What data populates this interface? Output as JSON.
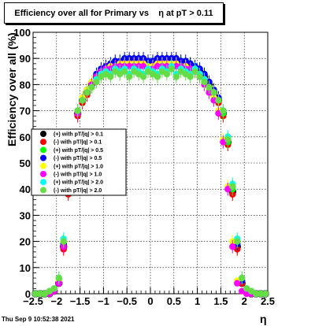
{
  "title": "Efficiency over all for Primary vs    η at pT > 0.11",
  "timestamp": "Thu Sep  9 10:52:38 2021",
  "chart_data": {
    "type": "scatter",
    "title": "Efficiency over all for Primary vs    η at pT > 0.11",
    "xlabel": "η",
    "ylabel": "Efficiency over all (%)",
    "xlim": [
      -2.5,
      2.5
    ],
    "ylim": [
      0,
      100
    ],
    "x_ticks": [
      -2.5,
      -2,
      -1.5,
      -1,
      -0.5,
      0,
      0.5,
      1,
      1.5,
      2,
      2.5
    ],
    "x_tick_labels": [
      "−2.5",
      "−2",
      "−1.5",
      "−1",
      "−0.5",
      "0",
      "0.5",
      "1",
      "1.5",
      "2",
      "2.5"
    ],
    "y_ticks": [
      0,
      10,
      20,
      30,
      40,
      50,
      60,
      70,
      80,
      90,
      100
    ],
    "grid": true,
    "legend_position": "middle-left",
    "x": [
      -2.45,
      -2.35,
      -2.25,
      -2.15,
      -2.05,
      -1.95,
      -1.85,
      -1.75,
      -1.65,
      -1.55,
      -1.45,
      -1.35,
      -1.25,
      -1.15,
      -1.05,
      -0.95,
      -0.85,
      -0.75,
      -0.65,
      -0.55,
      -0.45,
      -0.35,
      -0.25,
      -0.15,
      -0.05,
      0.05,
      0.15,
      0.25,
      0.35,
      0.45,
      0.55,
      0.65,
      0.75,
      0.85,
      0.95,
      1.05,
      1.15,
      1.25,
      1.35,
      1.45,
      1.55,
      1.65,
      1.75,
      1.85,
      1.95,
      2.05,
      2.15,
      2.25,
      2.35,
      2.45
    ],
    "series": [
      {
        "name": "(+) with pT/|q| > 0.1",
        "color": "#000000",
        "values": [
          0,
          0,
          0,
          0,
          1,
          4,
          18,
          39,
          58,
          69,
          74,
          77,
          80,
          83,
          85,
          86,
          87,
          88,
          88,
          89,
          89,
          89,
          89,
          89,
          88,
          88,
          89,
          89,
          89,
          89,
          89,
          88,
          88,
          87,
          86,
          85,
          83,
          80,
          77,
          74,
          69,
          58,
          39,
          18,
          4,
          1,
          0,
          0,
          0,
          0
        ]
      },
      {
        "name": "(-) with pT/|q| > 0.1",
        "color": "#ff0000",
        "values": [
          0,
          0,
          0,
          0,
          1,
          4,
          17,
          38,
          57,
          68,
          73,
          76,
          79,
          82,
          84,
          85,
          86,
          87,
          87,
          88,
          88,
          88,
          88,
          88,
          87,
          87,
          88,
          88,
          88,
          88,
          88,
          87,
          87,
          86,
          85,
          84,
          82,
          79,
          76,
          73,
          68,
          57,
          38,
          17,
          4,
          1,
          0,
          0,
          0,
          0
        ]
      },
      {
        "name": "(+) with pT/|q| > 0.5",
        "color": "#00ff00",
        "values": [
          0,
          0,
          0,
          0,
          1,
          5,
          19,
          40,
          58,
          69,
          74,
          78,
          81,
          84,
          86,
          87,
          88,
          88,
          89,
          89,
          89,
          89,
          89,
          89,
          89,
          89,
          89,
          89,
          89,
          89,
          89,
          89,
          88,
          88,
          87,
          86,
          84,
          81,
          78,
          74,
          69,
          58,
          40,
          19,
          5,
          1,
          0,
          0,
          0,
          0
        ]
      },
      {
        "name": "(-) with pT/|q| > 0.5",
        "color": "#0000ff",
        "values": [
          0,
          0,
          0,
          0,
          1,
          5,
          19,
          41,
          59,
          70,
          75,
          78,
          81,
          84,
          86,
          87,
          88,
          89,
          89,
          90,
          90,
          90,
          90,
          90,
          89,
          89,
          90,
          90,
          90,
          90,
          90,
          89,
          89,
          88,
          87,
          86,
          84,
          81,
          78,
          75,
          70,
          59,
          41,
          19,
          5,
          1,
          0,
          0,
          0,
          0
        ]
      },
      {
        "name": "(+) with pT/|q| > 1.0",
        "color": "#ffff00",
        "values": [
          0,
          0,
          0,
          0,
          1,
          5,
          20,
          41,
          59,
          70,
          75,
          78,
          81,
          83,
          85,
          86,
          87,
          87,
          88,
          88,
          88,
          88,
          88,
          88,
          87,
          87,
          88,
          88,
          88,
          88,
          88,
          87,
          87,
          86,
          85,
          83,
          81,
          78,
          75,
          70,
          59,
          41,
          20,
          5,
          1,
          0,
          0,
          0,
          0,
          0
        ]
      },
      {
        "name": "(-) with pT/|q| > 1.0",
        "color": "#ff00ff",
        "values": [
          0,
          0,
          0,
          0,
          1,
          4,
          18,
          40,
          58,
          69,
          74,
          77,
          80,
          83,
          85,
          86,
          86,
          87,
          87,
          87,
          87,
          87,
          87,
          87,
          86,
          86,
          87,
          87,
          87,
          87,
          87,
          87,
          86,
          86,
          85,
          83,
          80,
          77,
          74,
          69,
          58,
          40,
          18,
          4,
          1,
          0,
          0,
          0,
          0,
          0
        ]
      },
      {
        "name": "(+) with pT/|q| > 2.0",
        "color": "#00ffff",
        "values": [
          0,
          0,
          0,
          1,
          2,
          6,
          21,
          42,
          60,
          70,
          74,
          77,
          79,
          82,
          84,
          85,
          84,
          86,
          85,
          86,
          84,
          86,
          85,
          84,
          86,
          85,
          84,
          86,
          85,
          87,
          84,
          86,
          85,
          84,
          86,
          84,
          82,
          79,
          77,
          74,
          70,
          60,
          42,
          21,
          6,
          2,
          1,
          0,
          0,
          0
        ]
      },
      {
        "name": "(-) with pT/|q| > 2.0",
        "color": "#66dd44",
        "values": [
          0,
          0,
          0,
          1,
          2,
          6,
          20,
          41,
          59,
          70,
          74,
          77,
          79,
          81,
          83,
          84,
          83,
          85,
          84,
          85,
          83,
          85,
          84,
          83,
          85,
          84,
          83,
          85,
          84,
          86,
          83,
          85,
          84,
          83,
          85,
          83,
          81,
          79,
          77,
          74,
          70,
          59,
          41,
          20,
          6,
          2,
          1,
          0,
          0,
          0
        ]
      }
    ]
  }
}
